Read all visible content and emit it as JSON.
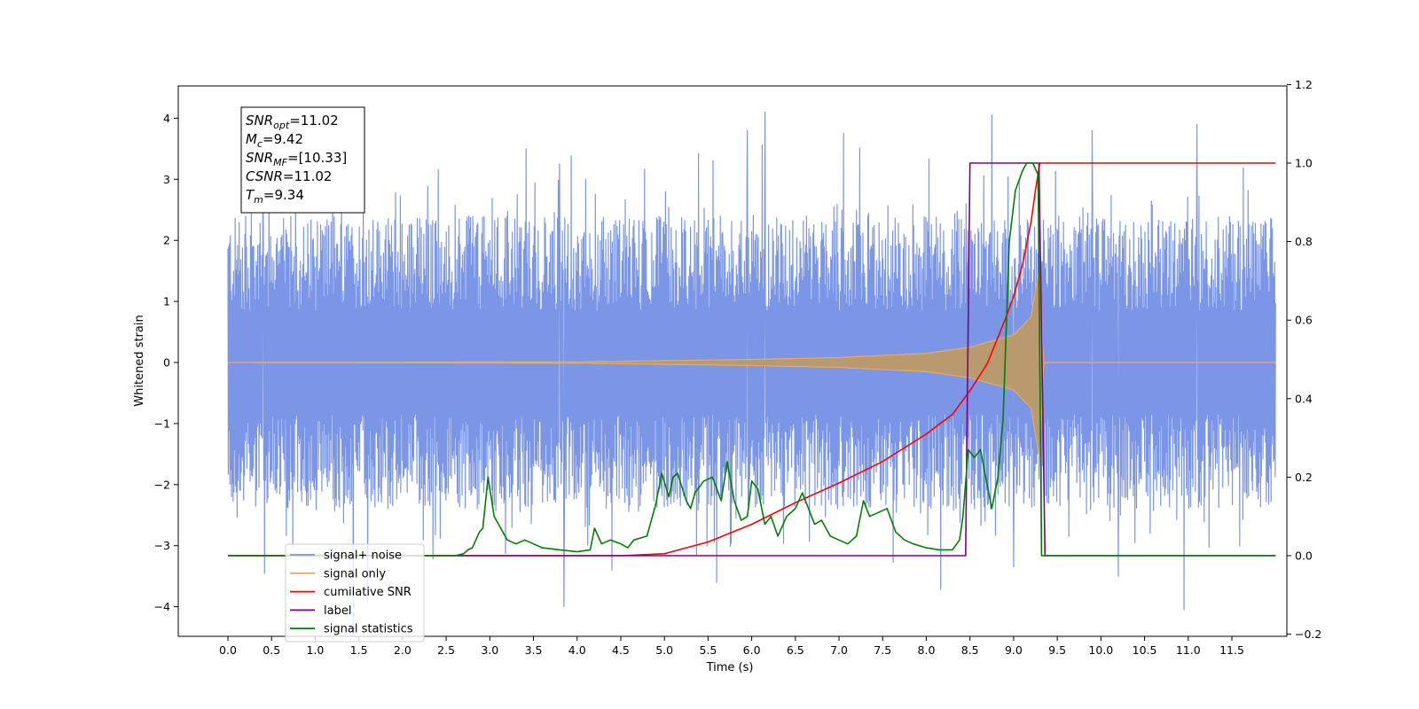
{
  "chart_data": {
    "type": "line",
    "title": "",
    "xlabel": "Time (s)",
    "ylabel": "Whitened strain",
    "xlim": [
      -0.6,
      12.6
    ],
    "ylim": [
      -4.45,
      4.5
    ],
    "y2lim": [
      -0.2,
      1.2
    ],
    "x_ticks": [
      0.0,
      0.5,
      1.0,
      1.5,
      2.0,
      2.5,
      3.0,
      3.5,
      4.0,
      4.5,
      5.0,
      5.5,
      6.0,
      6.5,
      7.0,
      7.5,
      8.0,
      8.5,
      9.0,
      9.5,
      10.0,
      10.5,
      11.0,
      11.5
    ],
    "x_tick_labels": [
      "0.0",
      "0.5",
      "1.0",
      "1.5",
      "2.0",
      "2.5",
      "3.0",
      "3.5",
      "4.0",
      "4.5",
      "5.0",
      "5.5",
      "6.0",
      "6.5",
      "7.0",
      "7.5",
      "8.0",
      "8.5",
      "9.0",
      "9.5",
      "10.0",
      "10.5",
      "11.0",
      "11.5"
    ],
    "y_ticks": [
      4,
      3,
      2,
      1,
      0,
      -1,
      -2,
      -3,
      -4
    ],
    "y_tick_labels": [
      "4",
      "3",
      "2",
      "1",
      "0",
      "−1",
      "−2",
      "−3",
      "−4"
    ],
    "y2_ticks": [
      1.2,
      1.0,
      0.8,
      0.6,
      0.4,
      0.2,
      0.0,
      -0.2
    ],
    "y2_tick_labels": [
      "1.2",
      "1.0",
      "0.8",
      "0.6",
      "0.4",
      "0.2",
      "0.0",
      "−0.2"
    ],
    "grid": false,
    "legend_position": "lower-left",
    "annotation": [
      {
        "main": "SNR",
        "sub": "opt",
        "rest": "=11.02"
      },
      {
        "main": "M",
        "sub": "c",
        "rest": "=9.42"
      },
      {
        "main": "SNR",
        "sub": "MF",
        "rest": "=[10.33]"
      },
      {
        "main": "CSNR",
        "sub": "",
        "rest": "=11.02"
      },
      {
        "main": "T",
        "sub": "m",
        "rest": "=9.34"
      }
    ],
    "series": [
      {
        "name": "signal+ noise",
        "axis": "left",
        "color": "#7b96e6",
        "x_range": [
          0.0,
          12.0
        ],
        "envelope_top": 2.4,
        "envelope_bottom": -2.4,
        "peaks_high": [
          [
            0.4,
            3.3
          ],
          [
            1.2,
            3.1
          ],
          [
            3.8,
            3.25
          ],
          [
            6.15,
            4.1
          ],
          [
            5.95,
            3.8
          ],
          [
            7.05,
            3.75
          ],
          [
            9.9,
            3.8
          ],
          [
            11.1,
            3.9
          ]
        ],
        "peaks_low": [
          [
            3.85,
            -4.0
          ],
          [
            10.95,
            -4.05
          ],
          [
            5.6,
            -3.6
          ],
          [
            9.0,
            -3.35
          ],
          [
            4.4,
            -3.4
          ],
          [
            10.2,
            -3.5
          ]
        ]
      },
      {
        "name": "signal only",
        "axis": "left",
        "color": "#e9ab5e",
        "values": [
          [
            0.0,
            0.0
          ],
          [
            4.0,
            0.01
          ],
          [
            5.0,
            0.03
          ],
          [
            6.0,
            0.05
          ],
          [
            7.0,
            0.08
          ],
          [
            8.0,
            0.15
          ],
          [
            8.5,
            0.25
          ],
          [
            9.0,
            0.45
          ],
          [
            9.2,
            0.75
          ],
          [
            9.3,
            1.6
          ],
          [
            9.34,
            0.0
          ],
          [
            12.0,
            0.0
          ]
        ]
      },
      {
        "name": "cumilative SNR",
        "axis": "right",
        "color": "#ff0000",
        "values": [
          [
            0.0,
            0.0
          ],
          [
            4.0,
            0.0
          ],
          [
            4.5,
            0.0
          ],
          [
            5.0,
            0.005
          ],
          [
            5.5,
            0.035
          ],
          [
            6.0,
            0.08
          ],
          [
            6.5,
            0.135
          ],
          [
            7.0,
            0.185
          ],
          [
            7.5,
            0.24
          ],
          [
            8.0,
            0.31
          ],
          [
            8.3,
            0.36
          ],
          [
            8.5,
            0.42
          ],
          [
            8.7,
            0.49
          ],
          [
            8.9,
            0.6
          ],
          [
            9.0,
            0.66
          ],
          [
            9.1,
            0.74
          ],
          [
            9.2,
            0.85
          ],
          [
            9.25,
            0.93
          ],
          [
            9.3,
            1.0
          ],
          [
            12.0,
            1.0
          ]
        ]
      },
      {
        "name": "label",
        "axis": "right",
        "color": "#800080",
        "values": [
          [
            0.0,
            0.0
          ],
          [
            8.45,
            0.0
          ],
          [
            8.5,
            1.0
          ],
          [
            9.29,
            1.0
          ],
          [
            9.36,
            0.0
          ],
          [
            12.0,
            0.0
          ]
        ]
      },
      {
        "name": "signal statistics",
        "axis": "right",
        "color": "#008000",
        "values": [
          [
            0.0,
            0.0
          ],
          [
            2.6,
            0.0
          ],
          [
            2.7,
            0.005
          ],
          [
            2.75,
            0.015
          ],
          [
            2.8,
            0.02
          ],
          [
            2.88,
            0.06
          ],
          [
            2.92,
            0.07
          ],
          [
            2.98,
            0.2
          ],
          [
            3.05,
            0.1
          ],
          [
            3.1,
            0.08
          ],
          [
            3.2,
            0.04
          ],
          [
            3.3,
            0.03
          ],
          [
            3.4,
            0.04
          ],
          [
            3.5,
            0.03
          ],
          [
            3.6,
            0.02
          ],
          [
            3.8,
            0.015
          ],
          [
            4.0,
            0.01
          ],
          [
            4.15,
            0.015
          ],
          [
            4.2,
            0.07
          ],
          [
            4.28,
            0.03
          ],
          [
            4.38,
            0.04
          ],
          [
            4.5,
            0.03
          ],
          [
            4.58,
            0.02
          ],
          [
            4.65,
            0.04
          ],
          [
            4.8,
            0.05
          ],
          [
            4.9,
            0.13
          ],
          [
            4.97,
            0.21
          ],
          [
            5.05,
            0.15
          ],
          [
            5.1,
            0.2
          ],
          [
            5.15,
            0.21
          ],
          [
            5.25,
            0.14
          ],
          [
            5.3,
            0.12
          ],
          [
            5.35,
            0.16
          ],
          [
            5.45,
            0.19
          ],
          [
            5.55,
            0.2
          ],
          [
            5.6,
            0.17
          ],
          [
            5.65,
            0.14
          ],
          [
            5.72,
            0.24
          ],
          [
            5.8,
            0.14
          ],
          [
            5.88,
            0.09
          ],
          [
            5.95,
            0.1
          ],
          [
            6.0,
            0.19
          ],
          [
            6.07,
            0.17
          ],
          [
            6.15,
            0.08
          ],
          [
            6.22,
            0.1
          ],
          [
            6.3,
            0.05
          ],
          [
            6.4,
            0.1
          ],
          [
            6.5,
            0.12
          ],
          [
            6.58,
            0.16
          ],
          [
            6.65,
            0.12
          ],
          [
            6.72,
            0.08
          ],
          [
            6.8,
            0.09
          ],
          [
            6.9,
            0.05
          ],
          [
            7.0,
            0.04
          ],
          [
            7.1,
            0.03
          ],
          [
            7.2,
            0.05
          ],
          [
            7.28,
            0.14
          ],
          [
            7.35,
            0.1
          ],
          [
            7.45,
            0.11
          ],
          [
            7.55,
            0.12
          ],
          [
            7.65,
            0.06
          ],
          [
            7.75,
            0.04
          ],
          [
            7.85,
            0.03
          ],
          [
            8.0,
            0.02
          ],
          [
            8.15,
            0.015
          ],
          [
            8.3,
            0.015
          ],
          [
            8.38,
            0.04
          ],
          [
            8.42,
            0.1
          ],
          [
            8.48,
            0.27
          ],
          [
            8.55,
            0.25
          ],
          [
            8.62,
            0.27
          ],
          [
            8.68,
            0.2
          ],
          [
            8.75,
            0.12
          ],
          [
            8.82,
            0.2
          ],
          [
            8.88,
            0.35
          ],
          [
            8.95,
            0.8
          ],
          [
            9.02,
            0.93
          ],
          [
            9.1,
            0.98
          ],
          [
            9.15,
            1.0
          ],
          [
            9.22,
            1.0
          ],
          [
            9.28,
            0.97
          ],
          [
            9.32,
            0.0
          ],
          [
            12.0,
            0.0
          ]
        ]
      }
    ]
  }
}
